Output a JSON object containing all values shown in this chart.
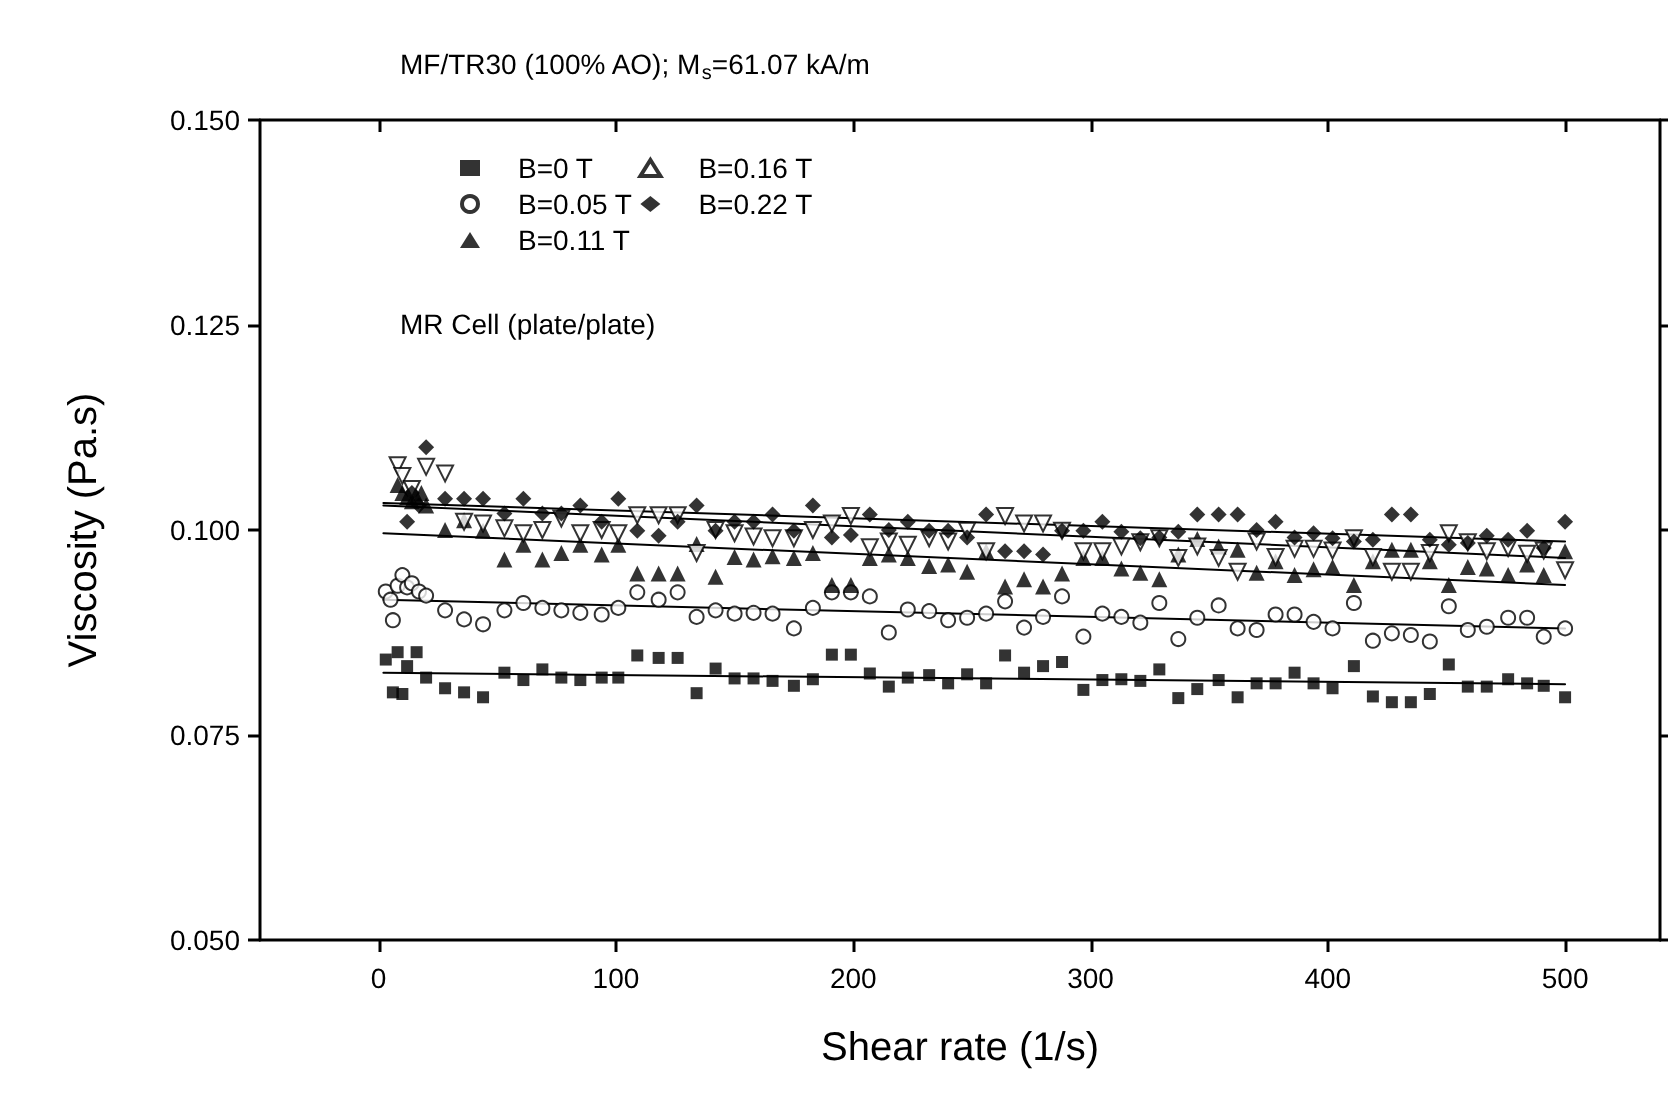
{
  "chart_data": {
    "type": "scatter",
    "xlabel": "Shear rate (1/s)",
    "ylabel": "Viscosity (Pa.s)",
    "annotations": [
      "MF/TR30 (100% AO); M$_{s}$=61.07 kA/m",
      "MR Cell (plate/plate)"
    ],
    "xlim": [
      -50,
      540
    ],
    "xticks": [
      0,
      100,
      200,
      300,
      400,
      500
    ],
    "ylim": [
      0.05,
      0.15
    ],
    "yticks": [
      {
        "value": 0.05,
        "label": "0.050"
      },
      {
        "value": 0.075,
        "label": "0.075"
      },
      {
        "value": 0.1,
        "label": "0.100"
      },
      {
        "value": 0.125,
        "label": "0.125"
      },
      {
        "value": 0.15,
        "label": "0.150"
      }
    ],
    "grid": false,
    "legend": "top left",
    "series": [
      {
        "name": "B=0 T",
        "color": "#000000",
        "marker": "square",
        "x": [
          3,
          6,
          8,
          10,
          12,
          16,
          20,
          28,
          36,
          44,
          53,
          61,
          69,
          77,
          85,
          94,
          101,
          109,
          118,
          126,
          134,
          142,
          150,
          158,
          166,
          175,
          183,
          191,
          199,
          207,
          215,
          223,
          232,
          240,
          248,
          256,
          264,
          272,
          280,
          288,
          297,
          305,
          313,
          321,
          329,
          337,
          345,
          354,
          362,
          370,
          378,
          386,
          394,
          402,
          411,
          419,
          427,
          435,
          443,
          451,
          459,
          467,
          476,
          484,
          491,
          500
        ],
        "values": [
          0.0842,
          0.0802,
          0.0851,
          0.08,
          0.0834,
          0.0851,
          0.082,
          0.0807,
          0.0802,
          0.0796,
          0.0826,
          0.0817,
          0.083,
          0.082,
          0.0817,
          0.082,
          0.082,
          0.0847,
          0.0844,
          0.0844,
          0.0801,
          0.0831,
          0.0819,
          0.0819,
          0.0816,
          0.081,
          0.0818,
          0.0848,
          0.0848,
          0.0825,
          0.0809,
          0.082,
          0.0823,
          0.0813,
          0.0824,
          0.0813,
          0.0847,
          0.0826,
          0.0834,
          0.0839,
          0.0805,
          0.0817,
          0.0818,
          0.0816,
          0.083,
          0.0795,
          0.0806,
          0.0817,
          0.0796,
          0.0813,
          0.0813,
          0.0826,
          0.0813,
          0.0807,
          0.0834,
          0.0797,
          0.079,
          0.079,
          0.08,
          0.0836,
          0.0809,
          0.0809,
          0.0818,
          0.0813,
          0.081,
          0.0796
        ]
      },
      {
        "name": "B=0.05 T",
        "color": "#000000",
        "marker": "circle-open",
        "x": [
          3,
          5,
          6,
          8,
          10,
          12,
          14,
          17,
          20,
          28,
          36,
          44,
          53,
          61,
          69,
          77,
          85,
          94,
          101,
          109,
          118,
          126,
          134,
          142,
          150,
          158,
          166,
          175,
          183,
          191,
          199,
          207,
          215,
          223,
          232,
          240,
          248,
          256,
          264,
          272,
          280,
          288,
          297,
          305,
          313,
          321,
          329,
          337,
          345,
          354,
          362,
          370,
          378,
          386,
          394,
          402,
          411,
          419,
          427,
          435,
          443,
          451,
          459,
          467,
          476,
          484,
          491,
          500
        ],
        "values": [
          0.0925,
          0.0915,
          0.089,
          0.0932,
          0.0945,
          0.093,
          0.0935,
          0.0925,
          0.092,
          0.0902,
          0.0891,
          0.0885,
          0.0902,
          0.0911,
          0.0905,
          0.0902,
          0.0899,
          0.0897,
          0.0905,
          0.0924,
          0.0915,
          0.0924,
          0.0894,
          0.0902,
          0.0898,
          0.0899,
          0.0898,
          0.088,
          0.0905,
          0.0924,
          0.0924,
          0.0919,
          0.0875,
          0.0903,
          0.0901,
          0.089,
          0.0893,
          0.0898,
          0.0913,
          0.0881,
          0.0894,
          0.0919,
          0.087,
          0.0898,
          0.0894,
          0.0887,
          0.0911,
          0.0867,
          0.0893,
          0.0908,
          0.088,
          0.0878,
          0.0897,
          0.0897,
          0.0888,
          0.088,
          0.0911,
          0.0865,
          0.0874,
          0.0872,
          0.0864,
          0.0907,
          0.0878,
          0.0882,
          0.0893,
          0.0893,
          0.087,
          0.088
        ]
      },
      {
        "name": "B=0.11 T",
        "color": "#000000",
        "marker": "triangle",
        "x": [
          8,
          10,
          12,
          14,
          16,
          18,
          20,
          28,
          36,
          44,
          53,
          61,
          69,
          77,
          85,
          94,
          101,
          109,
          118,
          126,
          134,
          142,
          150,
          158,
          166,
          175,
          183,
          191,
          199,
          207,
          215,
          223,
          232,
          240,
          248,
          256,
          264,
          272,
          280,
          288,
          297,
          305,
          313,
          321,
          329,
          337,
          345,
          354,
          362,
          370,
          378,
          386,
          394,
          402,
          411,
          419,
          427,
          435,
          443,
          451,
          459,
          467,
          476,
          484,
          491,
          500
        ],
        "values": [
          0.1055,
          0.1045,
          0.104,
          0.1035,
          0.104,
          0.1045,
          0.103,
          0.1,
          0.1012,
          0.0999,
          0.0964,
          0.0982,
          0.0964,
          0.0972,
          0.0982,
          0.097,
          0.0982,
          0.0947,
          0.0947,
          0.0947,
          0.0983,
          0.0943,
          0.0967,
          0.0964,
          0.0968,
          0.0966,
          0.0972,
          0.0933,
          0.0933,
          0.0966,
          0.097,
          0.0966,
          0.0956,
          0.0958,
          0.0949,
          0.0974,
          0.0931,
          0.094,
          0.0931,
          0.0947,
          0.0966,
          0.0966,
          0.0953,
          0.0948,
          0.094,
          0.097,
          0.0989,
          0.098,
          0.0976,
          0.0948,
          0.0962,
          0.0945,
          0.0952,
          0.0955,
          0.0933,
          0.0962,
          0.0976,
          0.0976,
          0.0962,
          0.0933,
          0.0955,
          0.0953,
          0.0945,
          0.0958,
          0.0945,
          0.0974
        ]
      },
      {
        "name": "B=0.16 T",
        "color": "#000000",
        "marker": "triangle-down-open",
        "x": [
          8,
          10,
          14,
          20,
          28,
          36,
          44,
          53,
          61,
          69,
          77,
          85,
          94,
          101,
          109,
          118,
          126,
          134,
          142,
          150,
          158,
          166,
          175,
          183,
          191,
          199,
          207,
          215,
          223,
          232,
          240,
          248,
          256,
          264,
          272,
          280,
          288,
          297,
          305,
          313,
          321,
          329,
          337,
          345,
          354,
          362,
          370,
          378,
          386,
          394,
          402,
          411,
          419,
          427,
          435,
          443,
          451,
          459,
          467,
          476,
          484,
          491,
          500
        ],
        "values": [
          0.1079,
          0.1066,
          0.105,
          0.1077,
          0.1069,
          0.101,
          0.1008,
          0.1002,
          0.0996,
          0.1,
          0.1014,
          0.0996,
          0.1,
          0.0996,
          0.1018,
          0.1018,
          0.1018,
          0.0972,
          0.1,
          0.0996,
          0.0992,
          0.099,
          0.099,
          0.1,
          0.1008,
          0.1017,
          0.0979,
          0.0986,
          0.0982,
          0.099,
          0.0986,
          0.0999,
          0.0974,
          0.1017,
          0.1008,
          0.1008,
          0.0999,
          0.0974,
          0.0974,
          0.098,
          0.0985,
          0.099,
          0.0966,
          0.098,
          0.0966,
          0.0949,
          0.0986,
          0.0967,
          0.0977,
          0.0977,
          0.0975,
          0.099,
          0.0967,
          0.0949,
          0.0949,
          0.0972,
          0.0996,
          0.0985,
          0.0974,
          0.0978,
          0.0971,
          0.0975,
          0.0951
        ]
      },
      {
        "name": "B=0.22 T",
        "color": "#000000",
        "marker": "diamond",
        "x": [
          12,
          14,
          17,
          20,
          28,
          36,
          44,
          53,
          61,
          69,
          77,
          85,
          94,
          101,
          109,
          118,
          126,
          134,
          142,
          150,
          158,
          166,
          175,
          183,
          191,
          199,
          207,
          215,
          223,
          232,
          240,
          248,
          256,
          264,
          272,
          280,
          288,
          297,
          305,
          313,
          321,
          329,
          337,
          345,
          354,
          362,
          370,
          378,
          386,
          394,
          402,
          411,
          419,
          427,
          435,
          443,
          451,
          459,
          467,
          476,
          484,
          491,
          500
        ],
        "values": [
          0.101,
          0.1045,
          0.103,
          0.1101,
          0.1038,
          0.1038,
          0.1038,
          0.102,
          0.1038,
          0.102,
          0.102,
          0.103,
          0.101,
          0.1038,
          0.0999,
          0.0993,
          0.101,
          0.103,
          0.0999,
          0.101,
          0.101,
          0.1019,
          0.0999,
          0.103,
          0.0991,
          0.0994,
          0.1019,
          0.1,
          0.101,
          0.0999,
          0.0999,
          0.0991,
          0.1019,
          0.0974,
          0.0974,
          0.097,
          0.0999,
          0.0999,
          0.101,
          0.0998,
          0.099,
          0.0991,
          0.0998,
          0.1019,
          0.1019,
          0.1019,
          0.1,
          0.101,
          0.0991,
          0.0996,
          0.099,
          0.0986,
          0.0988,
          0.1019,
          0.1019,
          0.0988,
          0.0982,
          0.0984,
          0.0993,
          0.0988,
          0.0999,
          0.0978,
          0.101
        ]
      },
      {
        "type": "line",
        "color": "#000000",
        "marker": "none",
        "x": [
          2,
          500
        ],
        "values": [
          0.0826,
          0.0812
        ]
      },
      {
        "type": "line",
        "color": "#000000",
        "marker": "none",
        "x": [
          2,
          500
        ],
        "values": [
          0.0915,
          0.088
        ]
      },
      {
        "type": "line",
        "color": "#000000",
        "marker": "none",
        "x": [
          2,
          500
        ],
        "values": [
          0.0996,
          0.0933
        ]
      },
      {
        "type": "line",
        "color": "#000000",
        "marker": "none",
        "x": [
          2,
          500
        ],
        "values": [
          0.103,
          0.0966
        ]
      },
      {
        "type": "line",
        "color": "#000000",
        "marker": "none",
        "x": [
          2,
          500
        ],
        "values": [
          0.1033,
          0.0986
        ]
      }
    ]
  }
}
